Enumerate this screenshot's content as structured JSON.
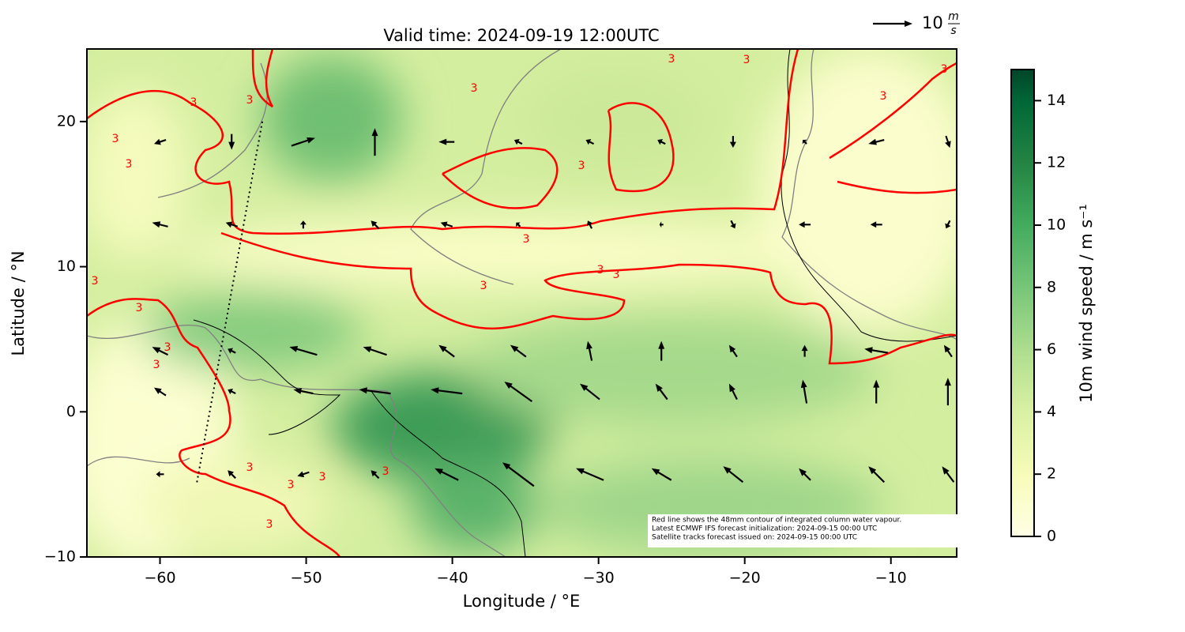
{
  "chart_data": {
    "type": "quiver_map",
    "title": "Valid time: 2024-09-19 12:00UTC",
    "xlabel": "Longitude / °E",
    "ylabel": "Latitude / °N",
    "xlim": [
      -65,
      -5.5
    ],
    "ylim": [
      -10,
      25
    ],
    "xticks": [
      {
        "value": -60,
        "label": "−60"
      },
      {
        "value": -50,
        "label": "−50"
      },
      {
        "value": -40,
        "label": "−40"
      },
      {
        "value": -30,
        "label": "−30"
      },
      {
        "value": -20,
        "label": "−20"
      },
      {
        "value": -10,
        "label": "−10"
      }
    ],
    "yticks": [
      {
        "value": -10,
        "label": "−10"
      },
      0,
      10,
      20
    ],
    "colorbar": {
      "label": "10m wind speed / m s⁻¹",
      "clim": [
        0,
        15
      ],
      "ticks": [
        0,
        2,
        4,
        6,
        8,
        10,
        12,
        14
      ]
    },
    "contour_label": "3",
    "contour_color": "#ff0000",
    "quiver_key": {
      "value": 10,
      "unit_numerator": "m",
      "unit_denominator": "s"
    },
    "satellite_track": {
      "lon": [
        -53,
        -57.5
      ],
      "lat": [
        20,
        -5
      ]
    },
    "annotation": [
      "Red line shows the 48mm contour of integrated column water vapour.",
      "Latest ECMWF IFS forecast initialization: 2024-09-15 00:00 UTC",
      "Satellite tracks forecast issued on: 2024-09-15 00:00 UTC"
    ],
    "wind_vectors": {
      "lon": [
        -60,
        -55.1,
        -50.2,
        -45.3,
        -40.4,
        -35.5,
        -30.6,
        -25.7,
        -20.8,
        -15.9,
        -11,
        -6.1,
        -60,
        -55.1,
        -50.2,
        -45.3,
        -40.4,
        -35.5,
        -30.6,
        -25.7,
        -20.8,
        -15.9,
        -11,
        -6.1,
        -60,
        -55.1,
        -50.2,
        -45.3,
        -40.4,
        -35.5,
        -30.6,
        -25.7,
        -20.8,
        -15.9,
        -11,
        -6.1,
        -60,
        -55.1,
        -50.2,
        -45.3,
        -40.4,
        -35.5,
        -30.6,
        -25.7,
        -20.8,
        -15.9,
        -11,
        -6.1,
        -60,
        -55.1,
        -50.2,
        -45.3,
        -40.4,
        -35.5,
        -30.6,
        -25.7,
        -20.8,
        -15.9,
        -11,
        -6.1
      ],
      "lat": [
        18.6,
        18.6,
        18.6,
        18.6,
        18.6,
        18.6,
        18.6,
        18.6,
        18.6,
        18.6,
        18.6,
        18.6,
        12.9,
        12.9,
        12.9,
        12.9,
        12.9,
        12.9,
        12.9,
        12.9,
        12.9,
        12.9,
        12.9,
        12.9,
        4.2,
        4.2,
        4.2,
        4.2,
        4.2,
        4.2,
        4.2,
        4.2,
        4.2,
        4.2,
        4.2,
        4.2,
        1.4,
        1.4,
        1.4,
        1.4,
        1.4,
        1.4,
        1.4,
        1.4,
        1.4,
        1.4,
        1.4,
        1.4,
        -4.3,
        -4.3,
        -4.3,
        -4.3,
        -4.3,
        -4.3,
        -4.3,
        -4.3,
        -4.3,
        -4.3,
        -4.3,
        -4.3
      ],
      "u": [
        -3,
        0,
        6,
        0,
        -4,
        -2,
        -2,
        -2,
        0,
        -1,
        -4,
        1,
        -4,
        -3,
        0,
        -2,
        -3,
        -1,
        -1,
        -1,
        1,
        -3,
        -3,
        -1,
        -4,
        -2,
        -7,
        -6,
        -4,
        -4,
        -1,
        0,
        -2,
        0,
        -6,
        -2,
        -3,
        -2,
        -5,
        -8,
        -8,
        -7,
        -5,
        -3,
        -2,
        -1,
        0,
        0,
        -2,
        -2,
        -3,
        -2,
        -6,
        -8,
        -7,
        -5,
        -5,
        -3,
        -4,
        -3
      ],
      "v": [
        -1,
        -4,
        2,
        7,
        0,
        1,
        1,
        1,
        -3,
        1,
        -1,
        -3,
        1,
        1,
        2,
        2,
        1,
        1,
        2,
        0,
        -2,
        0,
        0,
        -2,
        2,
        1,
        2,
        2,
        3,
        3,
        5,
        5,
        3,
        3,
        1,
        3,
        2,
        1,
        1,
        1,
        1,
        5,
        4,
        4,
        4,
        6,
        6,
        7,
        0,
        2,
        -1,
        2,
        3,
        6,
        3,
        3,
        4,
        3,
        4,
        4
      ]
    }
  }
}
